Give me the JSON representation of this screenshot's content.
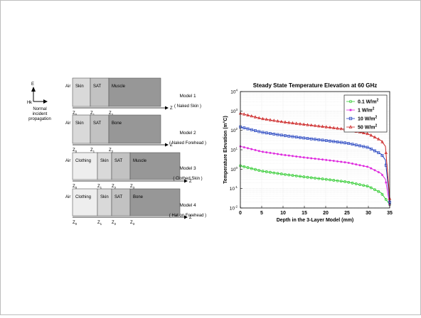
{
  "left": {
    "legend": {
      "e_label": "E",
      "h_label": "H",
      "k_label": "k",
      "caption_lines": [
        "Normal",
        "incident",
        "propagation"
      ]
    },
    "models": [
      {
        "title": "Model 1",
        "subtitle": "( Naked Skin )",
        "layers": [
          {
            "label": "Skin",
            "color": "#d9d9d9"
          },
          {
            "label": "SAT",
            "color": "#c2c2c2"
          },
          {
            "label": "Muscle",
            "color": "#979797"
          }
        ],
        "ticks": [
          "Z0",
          "Z1",
          "Z2"
        ]
      },
      {
        "title": "Model 2",
        "subtitle": "( Naked Forehead )",
        "layers": [
          {
            "label": "Skin",
            "color": "#d9d9d9"
          },
          {
            "label": "SAT",
            "color": "#c2c2c2"
          },
          {
            "label": "Bone",
            "color": "#979797"
          }
        ],
        "ticks": [
          "Z0",
          "Z1",
          "Z2"
        ]
      },
      {
        "title": "Model 3",
        "subtitle": "( Clothed Skin )",
        "layers": [
          {
            "label": "Clothing",
            "color": "#eeeeee"
          },
          {
            "label": "Skin",
            "color": "#d9d9d9"
          },
          {
            "label": "SAT",
            "color": "#c2c2c2"
          },
          {
            "label": "Muscle",
            "color": "#979797"
          }
        ],
        "ticks": [
          "Z0",
          "Z1",
          "Z2",
          "Z3"
        ]
      },
      {
        "title": "Model 4",
        "subtitle": "( Hat on Forehead )",
        "layers": [
          {
            "label": "Clothing",
            "color": "#eeeeee"
          },
          {
            "label": "Skin",
            "color": "#d9d9d9"
          },
          {
            "label": "SAT",
            "color": "#c2c2c2"
          },
          {
            "label": "Bone",
            "color": "#979797"
          }
        ],
        "ticks": [
          "Z0",
          "Z1",
          "Z2",
          "Z3"
        ]
      }
    ],
    "air_label": "Air",
    "z_label": "Z"
  },
  "chart_data": {
    "type": "line",
    "title": "Steady State Temperature Elevation at 60 GHz",
    "xlabel": "Depth in the 3-Layer Model (mm)",
    "ylabel": "Temperature Elevation (m°C)",
    "xlim": [
      0,
      35
    ],
    "ylim": [
      0.01,
      10000
    ],
    "y_scale": "log",
    "x_ticks": [
      0,
      5,
      10,
      15,
      20,
      25,
      30,
      35
    ],
    "y_tick_exponents": [
      -2,
      -1,
      0,
      1,
      2,
      3,
      4
    ],
    "grid": true,
    "legend_position": "top-right",
    "series": [
      {
        "name": "0.1 W/m2",
        "color": "#33cc33",
        "marker": "circle",
        "x": [
          0,
          5,
          10,
          15,
          20,
          25,
          30,
          33,
          34,
          35
        ],
        "y": [
          1.5,
          0.8,
          0.55,
          0.4,
          0.3,
          0.22,
          0.13,
          0.06,
          0.03,
          0.015
        ]
      },
      {
        "name": "1 W/m2",
        "color": "#dd22dd",
        "marker": "star",
        "x": [
          0,
          5,
          10,
          15,
          20,
          25,
          30,
          33,
          34,
          35
        ],
        "y": [
          15,
          8,
          5.5,
          4,
          3,
          2.2,
          1.3,
          0.6,
          0.3,
          0.015
        ]
      },
      {
        "name": "10 W/m2",
        "color": "#1f3fbf",
        "marker": "square",
        "x": [
          0,
          5,
          10,
          15,
          20,
          25,
          30,
          33,
          34,
          35
        ],
        "y": [
          150,
          80,
          55,
          40,
          30,
          22,
          13,
          6,
          3,
          0.02
        ]
      },
      {
        "name": "50 W/m2",
        "color": "#cc2222",
        "marker": "triangle",
        "x": [
          0,
          5,
          10,
          15,
          20,
          25,
          30,
          33,
          34,
          35
        ],
        "y": [
          750,
          400,
          270,
          200,
          150,
          110,
          65,
          30,
          15,
          0.03
        ]
      }
    ]
  }
}
